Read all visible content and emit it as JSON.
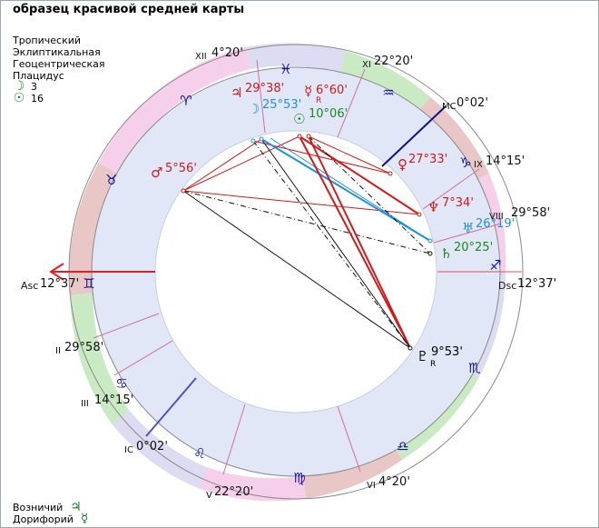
{
  "title": "образец красивой средней карты",
  "settings": [
    "Тропический",
    "Эклиптикальная",
    "Геоцентрическая",
    "Плацидус"
  ],
  "signature": [
    {
      "symbol": "☽",
      "value": "3",
      "color": "#1a7a1a"
    },
    {
      "symbol": "☉",
      "value": "16",
      "color": "#1a7a1a"
    }
  ],
  "footer": [
    {
      "label": "Возничий",
      "symbol": "♃",
      "color": "#1a7a1a"
    },
    {
      "label": "Дорифорий",
      "symbol": "☿",
      "color": "#1a7a1a"
    }
  ],
  "houses": {
    "asc": {
      "prefix": "Asc",
      "deg": "12°37'"
    },
    "dsc": {
      "prefix": "Dsc",
      "deg": "12°37'"
    },
    "mc": {
      "prefix": "MC",
      "deg": "0°02'"
    },
    "ic": {
      "prefix": "IC",
      "deg": "0°02'"
    },
    "h2": {
      "roman": "II",
      "deg": "29°58'"
    },
    "h3": {
      "roman": "III",
      "deg": "14°15'"
    },
    "h5": {
      "roman": "V",
      "deg": "22°20'"
    },
    "h6": {
      "roman": "VI",
      "deg": "4°20'"
    },
    "h8": {
      "roman": "VIII",
      "deg": "29°58'"
    },
    "h9": {
      "roman": "IX",
      "deg": "14°15'"
    },
    "h11": {
      "roman": "XI",
      "deg": "22°20'"
    },
    "h12": {
      "roman": "XII",
      "deg": "4°20'"
    }
  },
  "planets": [
    {
      "id": "jupiter",
      "symbol": "♃",
      "deg": "29°38'",
      "retro": "",
      "color": "#d11a1a"
    },
    {
      "id": "mercury",
      "symbol": "☿",
      "deg": "6°60'",
      "retro": "R",
      "color": "#d11a1a"
    },
    {
      "id": "moon",
      "symbol": "☽",
      "deg": "25°53'",
      "retro": "",
      "color": "#1e90e0"
    },
    {
      "id": "sun",
      "symbol": "☉",
      "deg": "10°06'",
      "retro": "",
      "color": "#1a8a1a"
    },
    {
      "id": "mars",
      "symbol": "♂",
      "deg": "5°56'",
      "retro": "",
      "color": "#d11a1a"
    },
    {
      "id": "venus",
      "symbol": "♀",
      "deg": "27°33'",
      "retro": "",
      "color": "#d11a1a"
    },
    {
      "id": "neptune",
      "symbol": "♆",
      "deg": "7°34'",
      "retro": "",
      "color": "#d11a1a"
    },
    {
      "id": "uranus",
      "symbol": "♅",
      "deg": "26°19'",
      "retro": "",
      "color": "#1e90e0"
    },
    {
      "id": "saturn",
      "symbol": "♄",
      "deg": "20°25'",
      "retro": "",
      "color": "#1a8a1a"
    },
    {
      "id": "pluto",
      "symbol": "♇",
      "deg": "9°53'",
      "retro": "R",
      "color": "#000000"
    }
  ],
  "zodiac": [
    {
      "symbol": "♓",
      "color": "#1010a0"
    },
    {
      "symbol": "♒",
      "color": "#1010a0"
    },
    {
      "symbol": "♑",
      "color": "#1010a0"
    },
    {
      "symbol": "♐",
      "color": "#1010a0"
    },
    {
      "symbol": "♏",
      "color": "#1010a0"
    },
    {
      "symbol": "♎",
      "color": "#1010a0"
    },
    {
      "symbol": "♍",
      "color": "#1010a0"
    },
    {
      "symbol": "♌",
      "color": "#1010a0"
    },
    {
      "symbol": "♋",
      "color": "#1010a0"
    },
    {
      "symbol": "♊",
      "color": "#1010a0"
    },
    {
      "symbol": "♉",
      "color": "#1010a0"
    },
    {
      "symbol": "♈",
      "color": "#1010a0"
    }
  ],
  "colors": {
    "fire": "#f6cfea",
    "earth": "#e9c7c7",
    "air": "#c9eac3",
    "water": "#dcdcf2",
    "house_band": "#e1e7f7",
    "aspect_red": "#d11a1a",
    "aspect_blue": "#1e90e0",
    "aspect_black": "#111111"
  }
}
